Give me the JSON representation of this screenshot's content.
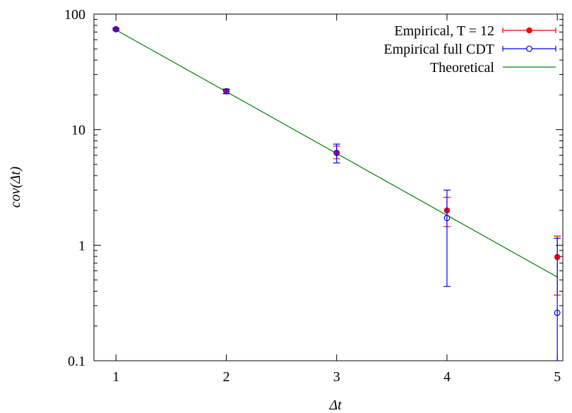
{
  "chart_data": {
    "type": "scatter",
    "title": "",
    "xlabel": "Δt",
    "ylabel": "cov(Δt)",
    "xlim": [
      0.8,
      5.05
    ],
    "ylim": [
      0.1,
      100
    ],
    "yscale": "log",
    "grid": false,
    "legend_position": "top-right",
    "xticks": [
      1,
      2,
      3,
      4,
      5
    ],
    "xtick_labels": [
      "1",
      "2",
      "3",
      "4",
      "5"
    ],
    "yticks": [
      0.1,
      1,
      10,
      100
    ],
    "ytick_labels": [
      "0.1",
      "1",
      "10",
      "100"
    ],
    "series": [
      {
        "name": "Empirical, T = 12",
        "kind": "errorbar",
        "marker": "filled-circle",
        "color": "#ff0000",
        "x": [
          1,
          2,
          3,
          4,
          5
        ],
        "y": [
          74,
          21.5,
          6.3,
          2.0,
          0.79
        ],
        "yerr_low": [
          72.5,
          20.5,
          5.6,
          1.45,
          0.37
        ],
        "yerr_high": [
          75.5,
          22.5,
          7.2,
          2.6,
          1.2
        ]
      },
      {
        "name": "Empirical full CDT",
        "kind": "errorbar",
        "marker": "open-circle",
        "color": "#0000ff",
        "x": [
          1,
          2,
          3,
          4,
          5
        ],
        "y": [
          74,
          21.5,
          6.3,
          1.72,
          0.26
        ],
        "yerr_low": [
          72.5,
          20.5,
          5.15,
          0.44,
          0.1
        ],
        "yerr_high": [
          75.5,
          22.3,
          7.5,
          3.0,
          1.15
        ]
      },
      {
        "name": "Theoretical",
        "kind": "line",
        "color": "#008000",
        "x": [
          1,
          5
        ],
        "y": [
          73,
          0.53
        ]
      }
    ]
  }
}
